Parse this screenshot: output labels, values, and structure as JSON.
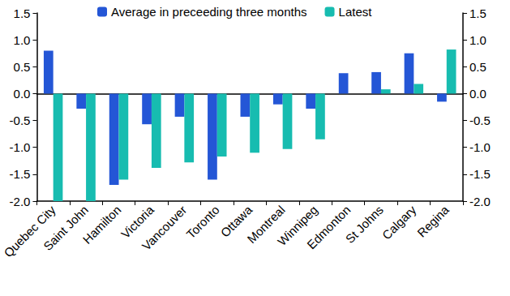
{
  "chart_data": {
    "type": "bar",
    "categories": [
      "Quebec City",
      "Saint John",
      "Hamilton",
      "Victoria",
      "Vancouver",
      "Toronto",
      "Ottawa",
      "Montreal",
      "Winnipeg",
      "Edmonton",
      "St Johns",
      "Calgary",
      "Regina"
    ],
    "series": [
      {
        "name": "Average in preceeding three months",
        "color": "#2456d6",
        "values": [
          0.8,
          -0.28,
          -1.7,
          -0.57,
          -0.43,
          -1.6,
          -0.43,
          -0.2,
          -0.28,
          0.38,
          0.4,
          0.75,
          -0.15
        ]
      },
      {
        "name": "Latest",
        "color": "#17bcb0",
        "values": [
          -2.0,
          -2.0,
          -1.6,
          -1.38,
          -1.28,
          -1.17,
          -1.1,
          -1.03,
          -0.85,
          0.0,
          0.08,
          0.18,
          0.82
        ]
      }
    ],
    "ylim": [
      -2,
      1.5
    ],
    "yticks": [
      {
        "value": -2,
        "label": "-2.0"
      },
      -1.5,
      {
        "value": -1,
        "label": "-1.0"
      },
      -0.5,
      {
        "value": 0,
        "label": "0.0"
      },
      0.5,
      {
        "value": 1,
        "label": "1.0"
      },
      1.5
    ],
    "y2lim": [
      -2,
      1.5
    ],
    "y2ticks": [
      {
        "value": -2,
        "label": "-2.0"
      },
      -1.5,
      {
        "value": -1,
        "label": "-1.0"
      },
      -0.5,
      {
        "value": 0,
        "label": "0.0"
      },
      0.5,
      {
        "value": 1,
        "label": "1.0"
      },
      1.5
    ],
    "grid": false,
    "legend": "top"
  }
}
